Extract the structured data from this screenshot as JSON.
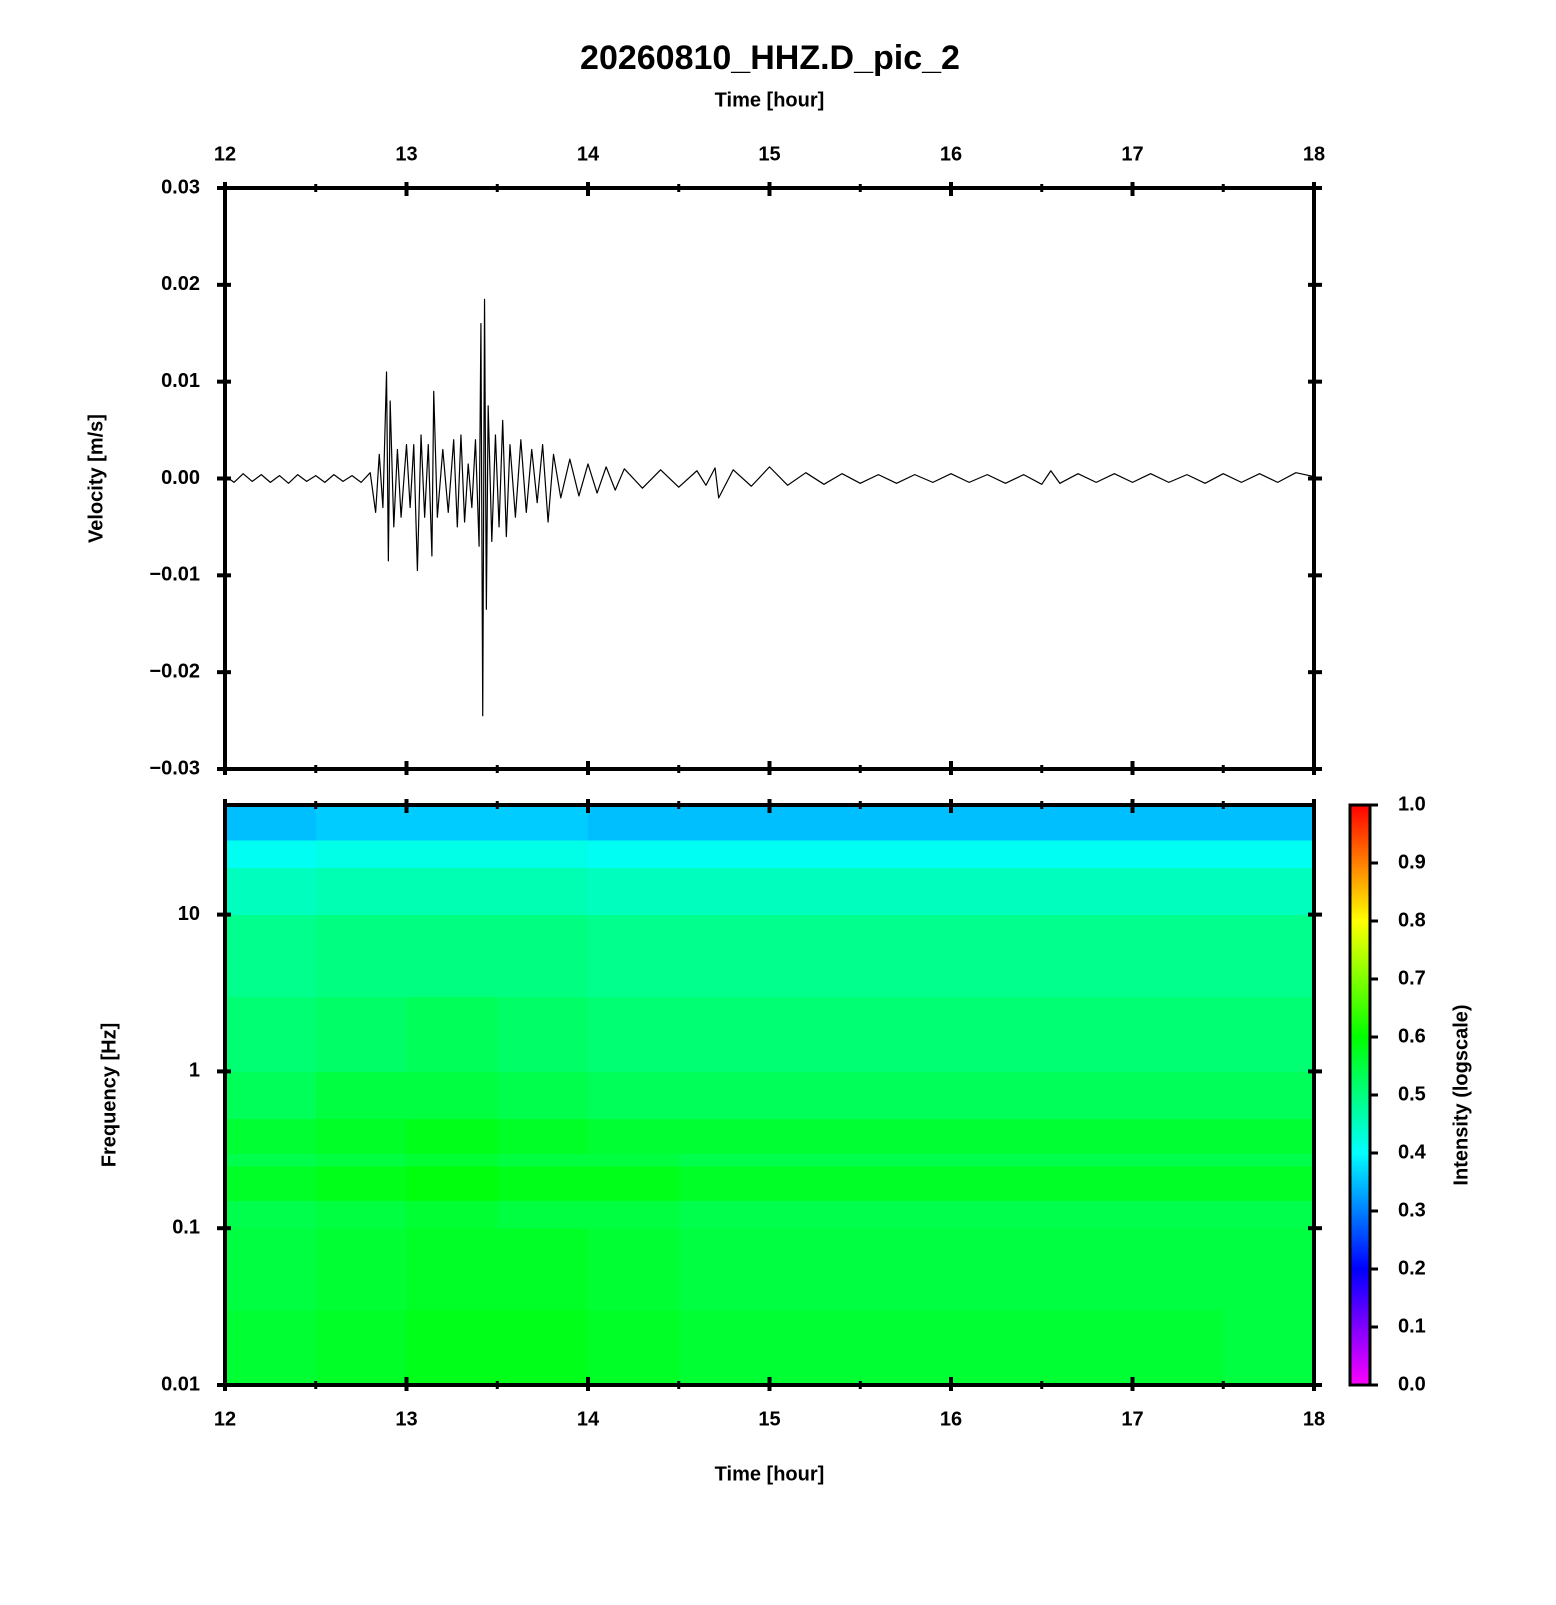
{
  "chart_data": [
    {
      "type": "line",
      "title": "20260810_HHZ.D_pic_2",
      "x_label": "Time [hour]",
      "y_label": "Velocity [m/s]",
      "color": "#000000",
      "xlim": [
        12,
        18
      ],
      "xticks": [
        12,
        13,
        14,
        15,
        16,
        17,
        18
      ],
      "xminorticks": [
        12.5,
        13.5,
        14.5,
        15.5,
        16.5,
        17.5
      ],
      "ylim": [
        -0.03,
        0.03
      ],
      "yticks": [
        {
          "value": -0.03,
          "label": "−0.03"
        },
        {
          "value": -0.02,
          "label": "−0.02"
        },
        {
          "value": -0.01,
          "label": "−0.01"
        },
        {
          "value": 0,
          "label": "0.00"
        },
        0.01,
        0.02,
        0.03
      ],
      "x": [
        12.0,
        12.05,
        12.1,
        12.15,
        12.2,
        12.25,
        12.3,
        12.35,
        12.4,
        12.45,
        12.5,
        12.55,
        12.6,
        12.65,
        12.7,
        12.75,
        12.8,
        12.83,
        12.85,
        12.87,
        12.89,
        12.9,
        12.91,
        12.93,
        12.95,
        12.97,
        13.0,
        13.02,
        13.04,
        13.06,
        13.08,
        13.1,
        13.12,
        13.14,
        13.15,
        13.17,
        13.2,
        13.23,
        13.26,
        13.28,
        13.3,
        13.32,
        13.34,
        13.36,
        13.38,
        13.4,
        13.41,
        13.42,
        13.43,
        13.44,
        13.45,
        13.47,
        13.49,
        13.51,
        13.53,
        13.55,
        13.57,
        13.6,
        13.63,
        13.66,
        13.69,
        13.72,
        13.75,
        13.78,
        13.81,
        13.85,
        13.9,
        13.95,
        14.0,
        14.05,
        14.1,
        14.15,
        14.2,
        14.3,
        14.4,
        14.5,
        14.6,
        14.65,
        14.7,
        14.72,
        14.8,
        14.9,
        15.0,
        15.1,
        15.2,
        15.3,
        15.4,
        15.5,
        15.6,
        15.7,
        15.8,
        15.9,
        16.0,
        16.1,
        16.2,
        16.3,
        16.4,
        16.5,
        16.55,
        16.6,
        16.7,
        16.8,
        16.9,
        17.0,
        17.1,
        17.2,
        17.3,
        17.4,
        17.5,
        17.6,
        17.7,
        17.8,
        17.9,
        18.0
      ],
      "values": [
        0.0003,
        -0.0004,
        0.0005,
        -0.0003,
        0.0004,
        -0.0004,
        0.0003,
        -0.0005,
        0.0004,
        -0.0003,
        0.0003,
        -0.0004,
        0.0004,
        -0.0003,
        0.0003,
        -0.0004,
        0.0006,
        -0.0035,
        0.0025,
        -0.003,
        0.011,
        -0.0085,
        0.008,
        -0.005,
        0.003,
        -0.004,
        0.0035,
        -0.003,
        0.0035,
        -0.0095,
        0.0045,
        -0.004,
        0.0035,
        -0.008,
        0.009,
        -0.004,
        0.003,
        -0.0035,
        0.004,
        -0.005,
        0.0045,
        -0.0045,
        0.0015,
        -0.003,
        0.004,
        -0.007,
        0.016,
        -0.0245,
        0.0185,
        -0.0135,
        0.0075,
        -0.0065,
        0.0045,
        -0.005,
        0.006,
        -0.006,
        0.0035,
        -0.004,
        0.004,
        -0.0035,
        0.003,
        -0.0025,
        0.0035,
        -0.0045,
        0.0025,
        -0.002,
        0.002,
        -0.0018,
        0.0015,
        -0.0015,
        0.0012,
        -0.0012,
        0.001,
        -0.001,
        0.0009,
        -0.0009,
        0.0008,
        -0.0007,
        0.0011,
        -0.002,
        0.0009,
        -0.0008,
        0.0012,
        -0.0007,
        0.0006,
        -0.0006,
        0.0005,
        -0.0005,
        0.0004,
        -0.0005,
        0.0004,
        -0.0004,
        0.0005,
        -0.0004,
        0.0004,
        -0.0005,
        0.0004,
        -0.0006,
        0.0008,
        -0.0005,
        0.0005,
        -0.0004,
        0.0005,
        -0.0004,
        0.0005,
        -0.0004,
        0.0004,
        -0.0005,
        0.0005,
        -0.0004,
        0.0005,
        -0.0004,
        0.0006,
        0.0002
      ]
    },
    {
      "type": "spectrogram",
      "x_label": "Time [hour]",
      "y_label": "Frequency [Hz]",
      "colorbar_label": "Intensity (logscale)",
      "log_y": true,
      "xlim": [
        12,
        18
      ],
      "xticks": [
        12,
        13,
        14,
        15,
        16,
        17,
        18
      ],
      "xminorticks": [
        12.5,
        13.5,
        14.5,
        15.5,
        16.5,
        17.5
      ],
      "ylim": [
        0.01,
        50
      ],
      "yticks": [
        0.01,
        0.1,
        1,
        10
      ],
      "cblim": [
        0,
        1
      ],
      "cbticks": [
        {
          "value": 0,
          "label": "0.0"
        },
        0.1,
        0.2,
        0.3,
        0.4,
        0.5,
        0.6,
        0.7,
        0.8,
        0.9,
        {
          "value": 1,
          "label": "1.0"
        }
      ],
      "x_bins": [
        12,
        12.5,
        13,
        13.5,
        14,
        14.5,
        15,
        15.5,
        16,
        16.5,
        17,
        17.5,
        18
      ],
      "y_bins": [
        0.01,
        0.03,
        0.1,
        0.15,
        0.25,
        0.3,
        0.5,
        1,
        3,
        10,
        20,
        30,
        50
      ],
      "values": [
        [
          0.56,
          0.57,
          0.58,
          0.58,
          0.57,
          0.56,
          0.56,
          0.56,
          0.56,
          0.56,
          0.56,
          0.55
        ],
        [
          0.55,
          0.56,
          0.57,
          0.57,
          0.56,
          0.55,
          0.55,
          0.55,
          0.55,
          0.55,
          0.55,
          0.55
        ],
        [
          0.54,
          0.55,
          0.56,
          0.55,
          0.55,
          0.54,
          0.54,
          0.54,
          0.54,
          0.54,
          0.54,
          0.54
        ],
        [
          0.57,
          0.58,
          0.59,
          0.58,
          0.58,
          0.57,
          0.57,
          0.57,
          0.57,
          0.57,
          0.57,
          0.57
        ],
        [
          0.54,
          0.55,
          0.56,
          0.55,
          0.55,
          0.54,
          0.54,
          0.54,
          0.54,
          0.54,
          0.54,
          0.54
        ],
        [
          0.56,
          0.57,
          0.58,
          0.57,
          0.56,
          0.56,
          0.56,
          0.56,
          0.56,
          0.56,
          0.56,
          0.56
        ],
        [
          0.53,
          0.55,
          0.55,
          0.54,
          0.53,
          0.53,
          0.53,
          0.53,
          0.53,
          0.53,
          0.53,
          0.53
        ],
        [
          0.51,
          0.52,
          0.53,
          0.52,
          0.51,
          0.51,
          0.51,
          0.51,
          0.51,
          0.51,
          0.51,
          0.51
        ],
        [
          0.49,
          0.5,
          0.5,
          0.5,
          0.49,
          0.49,
          0.49,
          0.49,
          0.49,
          0.49,
          0.49,
          0.49
        ],
        [
          0.45,
          0.46,
          0.46,
          0.46,
          0.45,
          0.45,
          0.45,
          0.45,
          0.45,
          0.45,
          0.45,
          0.45
        ],
        [
          0.41,
          0.42,
          0.42,
          0.42,
          0.41,
          0.41,
          0.41,
          0.41,
          0.41,
          0.41,
          0.41,
          0.41
        ],
        [
          0.35,
          0.36,
          0.36,
          0.36,
          0.35,
          0.35,
          0.35,
          0.35,
          0.35,
          0.35,
          0.35,
          0.35
        ]
      ]
    }
  ]
}
